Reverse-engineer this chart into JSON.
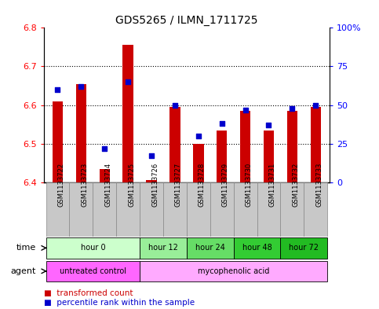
{
  "title": "GDS5265 / ILMN_1711725",
  "samples": [
    "GSM1133722",
    "GSM1133723",
    "GSM1133724",
    "GSM1133725",
    "GSM1133726",
    "GSM1133727",
    "GSM1133728",
    "GSM1133729",
    "GSM1133730",
    "GSM1133731",
    "GSM1133732",
    "GSM1133733"
  ],
  "transformed_count": [
    6.61,
    6.655,
    6.435,
    6.755,
    6.405,
    6.595,
    6.5,
    6.535,
    6.585,
    6.535,
    6.585,
    6.595
  ],
  "percentile_rank": [
    60,
    62,
    22,
    65,
    17,
    50,
    30,
    38,
    47,
    37,
    48,
    50
  ],
  "ylim_left": [
    6.4,
    6.8
  ],
  "ylim_right": [
    0,
    100
  ],
  "yticks_left": [
    6.4,
    6.5,
    6.6,
    6.7,
    6.8
  ],
  "yticks_right": [
    0,
    25,
    50,
    75,
    100
  ],
  "ytick_labels_right": [
    "0",
    "25",
    "50",
    "75",
    "100%"
  ],
  "bar_bottom": 6.4,
  "bar_color": "#cc0000",
  "dot_color": "#0000cc",
  "time_groups": [
    {
      "label": "hour 0",
      "start": 0,
      "end": 3,
      "color": "#ccffcc"
    },
    {
      "label": "hour 12",
      "start": 4,
      "end": 5,
      "color": "#99ee99"
    },
    {
      "label": "hour 24",
      "start": 6,
      "end": 7,
      "color": "#66dd66"
    },
    {
      "label": "hour 48",
      "start": 8,
      "end": 9,
      "color": "#33cc33"
    },
    {
      "label": "hour 72",
      "start": 10,
      "end": 11,
      "color": "#22bb22"
    }
  ],
  "agent_groups": [
    {
      "label": "untreated control",
      "start": 0,
      "end": 3,
      "color": "#ff66ff"
    },
    {
      "label": "mycophenolic acid",
      "start": 4,
      "end": 11,
      "color": "#ffaaff"
    }
  ],
  "legend_red_label": "transformed count",
  "legend_blue_label": "percentile rank within the sample",
  "time_row_label": "time",
  "agent_row_label": "agent",
  "sample_bg_color": "#c8c8c8",
  "sample_border_color": "#888888"
}
